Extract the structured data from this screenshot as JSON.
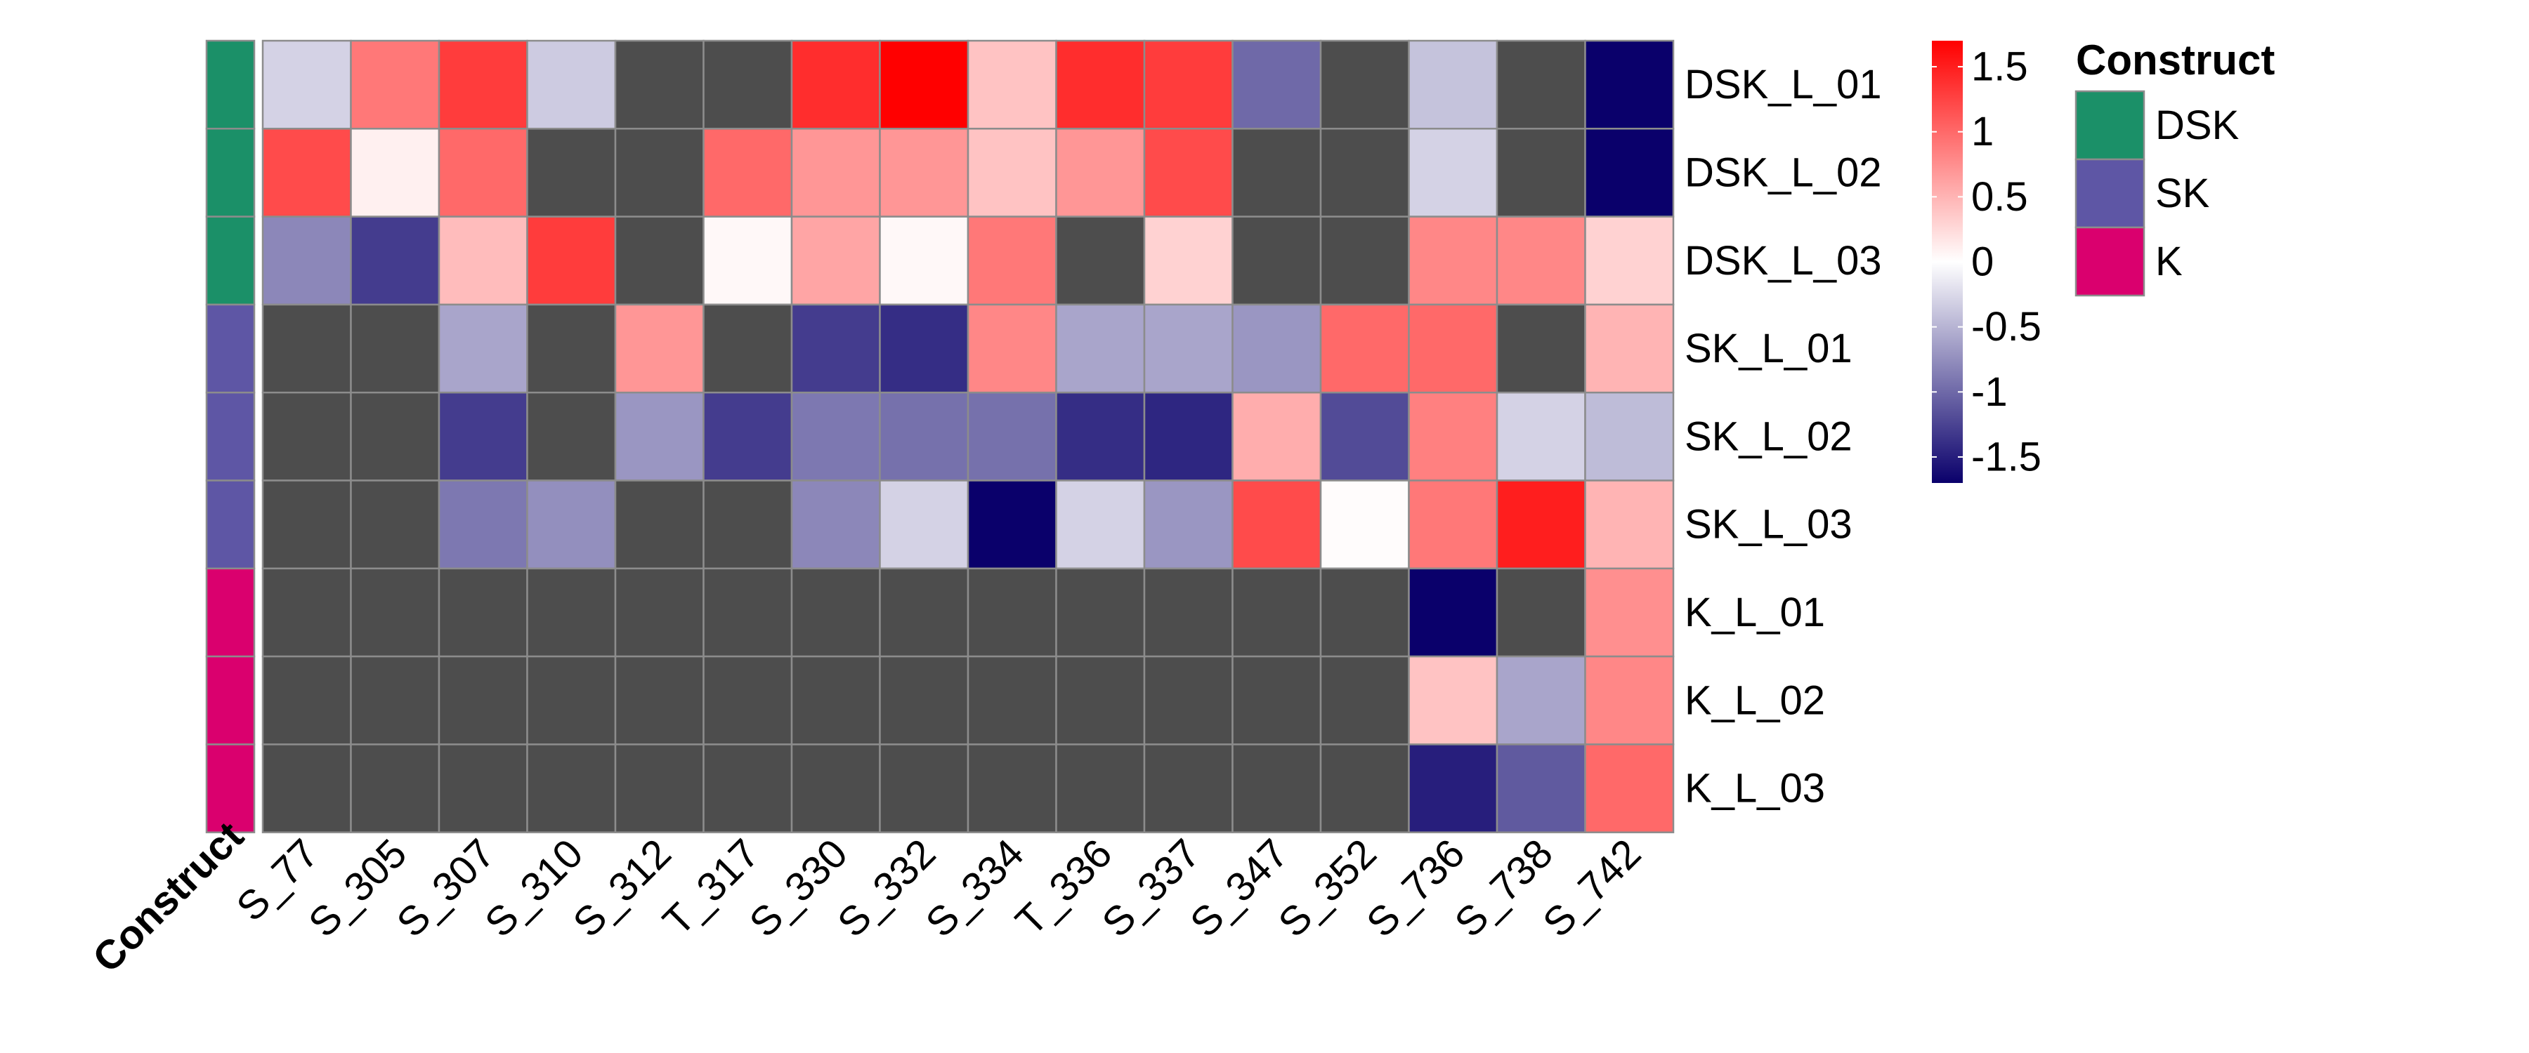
{
  "chart_data": {
    "type": "heatmap",
    "columns": [
      "S_77",
      "S_305",
      "S_307",
      "S_310",
      "S_312",
      "T_317",
      "S_330",
      "S_332",
      "S_334",
      "T_336",
      "S_337",
      "S_347",
      "S_352",
      "S_736",
      "S_738",
      "S_742"
    ],
    "rows": [
      "DSK_L_01",
      "DSK_L_02",
      "DSK_L_03",
      "SK_L_01",
      "SK_L_02",
      "SK_L_03",
      "K_L_01",
      "K_L_02",
      "K_L_03"
    ],
    "row_groups": [
      "DSK",
      "DSK",
      "DSK",
      "SK",
      "SK",
      "SK",
      "K",
      "K",
      "K"
    ],
    "values": [
      [
        -0.3,
        0.9,
        1.3,
        -0.35,
        null,
        null,
        1.4,
        1.7,
        0.4,
        1.4,
        1.3,
        -1.0,
        null,
        -0.4,
        null,
        -1.7
      ],
      [
        1.2,
        0.1,
        1.0,
        null,
        null,
        1.0,
        0.7,
        0.7,
        0.4,
        0.7,
        1.2,
        null,
        null,
        -0.3,
        null,
        -1.7
      ],
      [
        -0.8,
        -1.3,
        0.45,
        1.3,
        null,
        0.05,
        0.6,
        0.05,
        0.9,
        null,
        0.3,
        null,
        null,
        0.8,
        0.8,
        0.3
      ],
      [
        null,
        null,
        -0.6,
        null,
        0.7,
        null,
        -1.3,
        -1.4,
        0.8,
        -0.6,
        -0.6,
        -0.7,
        1.0,
        1.0,
        null,
        0.5
      ],
      [
        null,
        null,
        -1.3,
        null,
        -0.7,
        -1.3,
        -0.9,
        -0.95,
        -0.95,
        -1.4,
        -1.45,
        0.55,
        -1.2,
        0.85,
        -0.3,
        -0.45
      ],
      [
        null,
        null,
        -0.9,
        -0.75,
        null,
        null,
        -0.8,
        -0.3,
        -1.7,
        -0.3,
        -0.7,
        1.2,
        0.02,
        0.9,
        1.5,
        0.5
      ],
      [
        null,
        null,
        null,
        null,
        null,
        null,
        null,
        null,
        null,
        null,
        null,
        null,
        null,
        -1.7,
        null,
        0.75
      ],
      [
        null,
        null,
        null,
        null,
        null,
        null,
        null,
        null,
        null,
        null,
        null,
        null,
        null,
        0.4,
        -0.6,
        0.8
      ],
      [
        null,
        null,
        null,
        null,
        null,
        null,
        null,
        null,
        null,
        null,
        null,
        null,
        null,
        -1.5,
        -1.1,
        1.0
      ]
    ],
    "na_color": "#4d4d4d",
    "color_scale": {
      "min": -1.7,
      "max": 1.7,
      "low": "#0a006b",
      "mid": "#ffffff",
      "high": "#ff0000",
      "ticks": [
        1.5,
        1,
        0.5,
        0,
        -0.5,
        -1,
        -1.5
      ],
      "tick_labels": [
        "1.5",
        "1",
        "0.5",
        "0",
        "-0.5",
        "-1",
        "-1.5"
      ]
    },
    "annotation": {
      "label": "Construct",
      "legend_title": "Construct",
      "groups": [
        {
          "name": "DSK",
          "color": "#1b9068"
        },
        {
          "name": "SK",
          "color": "#5e56a5"
        },
        {
          "name": "K",
          "color": "#da006e"
        }
      ]
    }
  }
}
